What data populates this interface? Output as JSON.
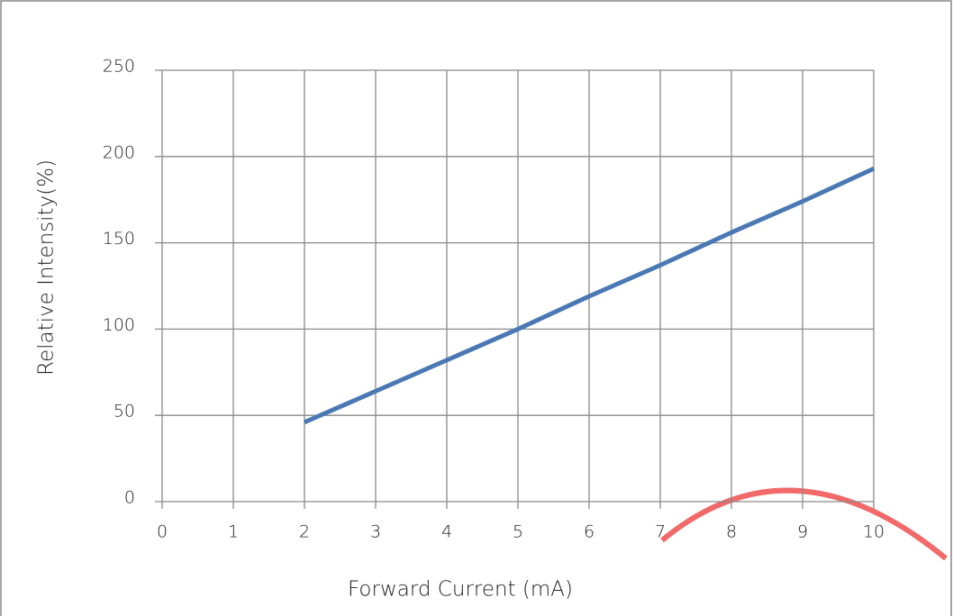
{
  "chart_data": {
    "type": "line",
    "x_label": "Forward Current (mA)",
    "y_label": "Relative Intensity(%)",
    "x": [
      2,
      3,
      4,
      5,
      6,
      7,
      8,
      9,
      10
    ],
    "series": [
      {
        "name": "Relative Intensity",
        "color": "#4a78b4",
        "values": [
          46,
          64,
          82,
          100,
          119,
          137,
          156,
          174,
          193
        ]
      }
    ],
    "xlim": [
      0,
      10
    ],
    "xticks": [
      0,
      1,
      2,
      3,
      4,
      5,
      6,
      7,
      8,
      9,
      10
    ],
    "ylim": [
      0,
      250
    ],
    "yticks": [
      0,
      50,
      100,
      150,
      200,
      250
    ],
    "grid": true
  }
}
